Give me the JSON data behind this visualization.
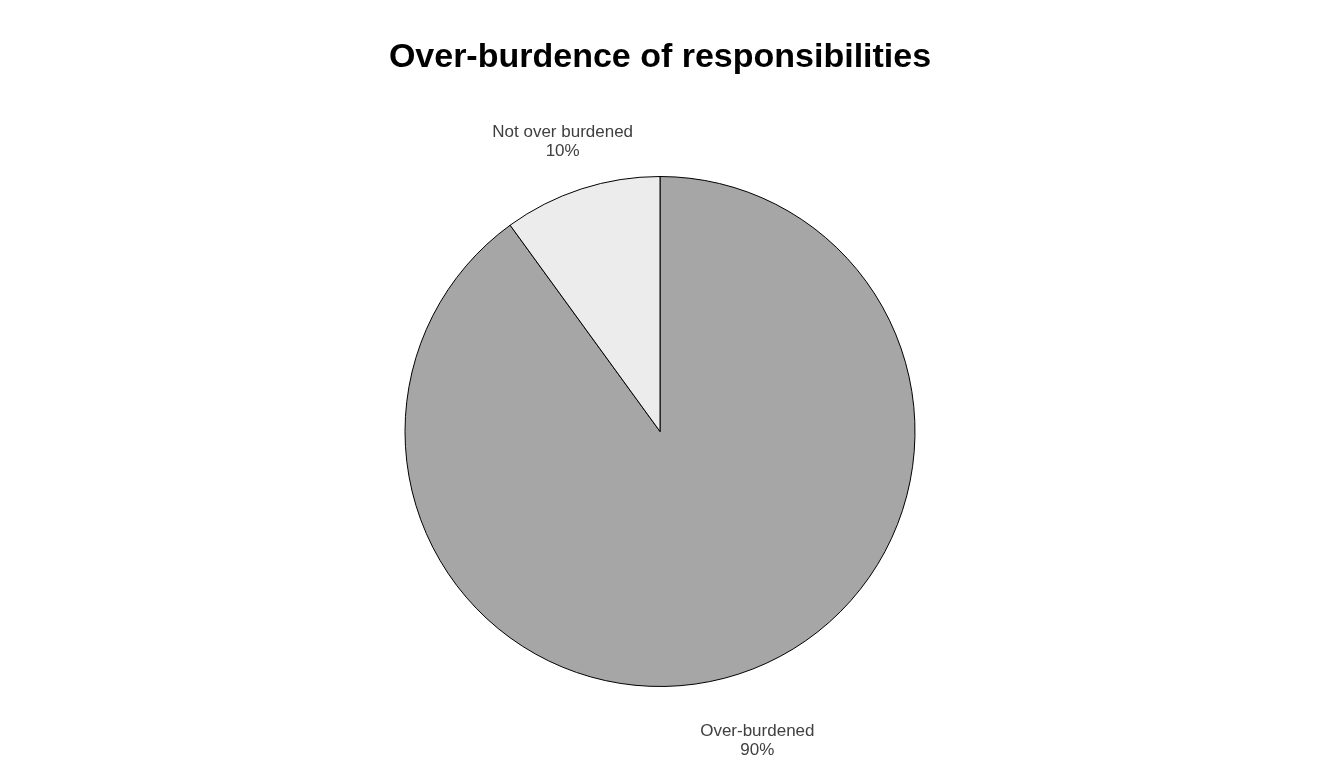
{
  "chart_data": {
    "type": "pie",
    "title": "Over-burdence of responsibilities",
    "categories": [
      "Over-burdened",
      "Not over burdened"
    ],
    "values": [
      90,
      10
    ],
    "value_labels": [
      "90%",
      "10%"
    ],
    "colors": [
      "#a6a6a6",
      "#ececec"
    ],
    "legend": false
  }
}
